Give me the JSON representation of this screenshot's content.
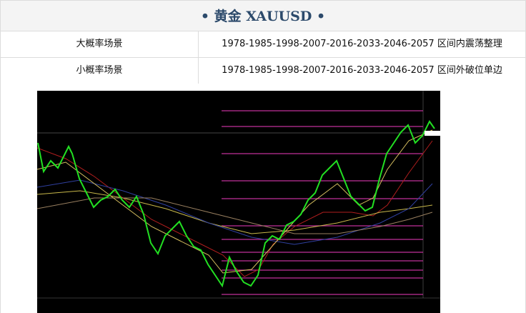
{
  "header": {
    "title": "• 黄金 XAUUSD •"
  },
  "table": {
    "rows": [
      [
        "大概率场景",
        "1978-1985-1998-2007-2016-2033-2046-2057 区间内震荡整理"
      ],
      [
        "小概率场景",
        "1978-1985-1998-2007-2016-2033-2046-2057 区间外破位单边"
      ]
    ]
  }
}
